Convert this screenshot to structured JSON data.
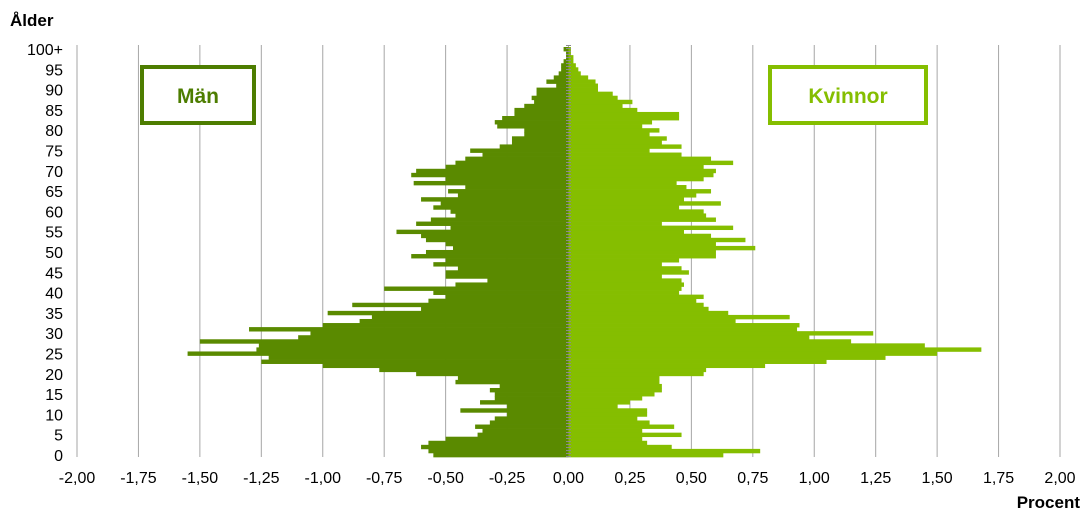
{
  "chart_data": {
    "type": "bar",
    "orientation": "horizontal",
    "ylabel": "Ålder",
    "xlabel": "Procent",
    "xlim": [
      -2.0,
      2.0
    ],
    "x_ticks": [
      "-2,00",
      "-1,75",
      "-1,50",
      "-1,25",
      "-1,00",
      "-0,75",
      "-0,50",
      "-0,25",
      "0,00",
      "0,25",
      "0,50",
      "0,75",
      "1,00",
      "1,25",
      "1,50",
      "1,75",
      "2,00"
    ],
    "y_ticks": [
      "0",
      "5",
      "10",
      "15",
      "20",
      "25",
      "30",
      "35",
      "40",
      "45",
      "50",
      "55",
      "60",
      "65",
      "70",
      "75",
      "80",
      "85",
      "90",
      "95",
      "100+"
    ],
    "grid": "vertical",
    "ages": [
      0,
      1,
      2,
      3,
      4,
      5,
      6,
      7,
      8,
      9,
      10,
      11,
      12,
      13,
      14,
      15,
      16,
      17,
      18,
      19,
      20,
      21,
      22,
      23,
      24,
      25,
      26,
      27,
      28,
      29,
      30,
      31,
      32,
      33,
      34,
      35,
      36,
      37,
      38,
      39,
      40,
      41,
      42,
      43,
      44,
      45,
      46,
      47,
      48,
      49,
      50,
      51,
      52,
      53,
      54,
      55,
      56,
      57,
      58,
      59,
      60,
      61,
      62,
      63,
      64,
      65,
      66,
      67,
      68,
      69,
      70,
      71,
      72,
      73,
      74,
      75,
      76,
      77,
      78,
      79,
      80,
      81,
      82,
      83,
      84,
      85,
      86,
      87,
      88,
      89,
      90,
      91,
      92,
      93,
      94,
      95,
      96,
      97,
      98,
      99,
      100
    ],
    "series": [
      {
        "name": "Män",
        "color": "#5a8a00",
        "values": [
          -0.55,
          -0.57,
          -0.6,
          -0.57,
          -0.5,
          -0.37,
          -0.35,
          -0.38,
          -0.32,
          -0.3,
          -0.25,
          -0.44,
          -0.25,
          -0.36,
          -0.3,
          -0.3,
          -0.32,
          -0.28,
          -0.46,
          -0.45,
          -0.62,
          -0.77,
          -1.0,
          -1.25,
          -1.22,
          -1.55,
          -1.27,
          -1.26,
          -1.5,
          -1.1,
          -1.05,
          -1.3,
          -1.0,
          -0.85,
          -0.8,
          -0.98,
          -0.6,
          -0.88,
          -0.57,
          -0.5,
          -0.55,
          -0.75,
          -0.46,
          -0.33,
          -0.5,
          -0.5,
          -0.45,
          -0.55,
          -0.5,
          -0.64,
          -0.58,
          -0.47,
          -0.5,
          -0.58,
          -0.6,
          -0.7,
          -0.48,
          -0.62,
          -0.56,
          -0.46,
          -0.48,
          -0.55,
          -0.52,
          -0.6,
          -0.45,
          -0.49,
          -0.42,
          -0.63,
          -0.5,
          -0.64,
          -0.62,
          -0.5,
          -0.46,
          -0.42,
          -0.35,
          -0.4,
          -0.28,
          -0.23,
          -0.23,
          -0.18,
          -0.18,
          -0.29,
          -0.3,
          -0.27,
          -0.22,
          -0.22,
          -0.18,
          -0.14,
          -0.15,
          -0.13,
          -0.13,
          -0.05,
          -0.09,
          -0.06,
          -0.04,
          -0.03,
          -0.03,
          -0.02,
          -0.01,
          -0.01,
          -0.02
        ]
      },
      {
        "name": "Kvinnor",
        "color": "#85be00",
        "values": [
          0.63,
          0.78,
          0.42,
          0.32,
          0.3,
          0.46,
          0.3,
          0.43,
          0.33,
          0.28,
          0.32,
          0.32,
          0.2,
          0.25,
          0.3,
          0.35,
          0.38,
          0.38,
          0.37,
          0.37,
          0.55,
          0.56,
          0.8,
          1.05,
          1.29,
          1.5,
          1.68,
          1.45,
          1.15,
          0.98,
          1.24,
          0.93,
          0.94,
          0.68,
          0.9,
          0.65,
          0.57,
          0.55,
          0.52,
          0.55,
          0.45,
          0.46,
          0.47,
          0.46,
          0.38,
          0.49,
          0.46,
          0.38,
          0.45,
          0.6,
          0.6,
          0.76,
          0.6,
          0.72,
          0.58,
          0.47,
          0.67,
          0.38,
          0.6,
          0.56,
          0.55,
          0.45,
          0.62,
          0.47,
          0.52,
          0.58,
          0.48,
          0.44,
          0.55,
          0.59,
          0.6,
          0.55,
          0.67,
          0.58,
          0.46,
          0.33,
          0.46,
          0.38,
          0.4,
          0.33,
          0.37,
          0.3,
          0.34,
          0.45,
          0.45,
          0.28,
          0.22,
          0.26,
          0.2,
          0.18,
          0.12,
          0.12,
          0.11,
          0.08,
          0.05,
          0.04,
          0.03,
          0.02,
          0.02,
          0.01,
          0.01
        ]
      }
    ],
    "legend": {
      "men_label": "Män",
      "women_label": "Kvinnor"
    }
  }
}
